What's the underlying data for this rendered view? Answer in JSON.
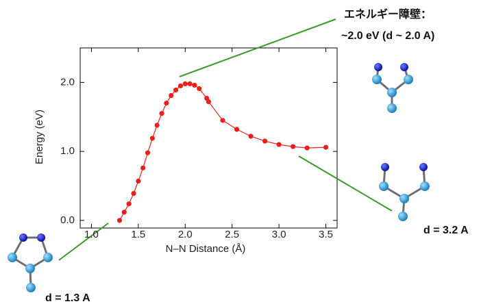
{
  "chart_data": {
    "type": "line",
    "xlabel": "N–N Distance (Å)",
    "ylabel": "Energy (eV)",
    "x": [
      1.3,
      1.35,
      1.4,
      1.45,
      1.5,
      1.55,
      1.6,
      1.65,
      1.7,
      1.75,
      1.8,
      1.85,
      1.9,
      1.95,
      2.0,
      2.05,
      2.1,
      2.15,
      2.23,
      2.25,
      2.4,
      2.55,
      2.7,
      2.85,
      3.0,
      3.15,
      3.3,
      3.5
    ],
    "series": [
      {
        "color": "#e8211b",
        "values": [
          0.0,
          0.12,
          0.24,
          0.39,
          0.57,
          0.76,
          0.98,
          1.19,
          1.38,
          1.55,
          1.7,
          1.81,
          1.89,
          1.95,
          1.98,
          1.98,
          1.96,
          1.91,
          1.77,
          1.72,
          1.45,
          1.32,
          1.22,
          1.15,
          1.1,
          1.07,
          1.05,
          1.06
        ]
      }
    ],
    "xlim": [
      0.88,
      3.62
    ],
    "ylim": [
      -0.11,
      2.5
    ],
    "xticks": [
      {
        "value": 1,
        "label": "1.0"
      },
      {
        "value": 1.5,
        "label": "1.5"
      },
      {
        "value": 2,
        "label": "2.0"
      },
      {
        "value": 2.5,
        "label": "2.5"
      },
      {
        "value": 3,
        "label": "3.0"
      },
      {
        "value": 3.5,
        "label": "3.5"
      }
    ],
    "yticks": [
      {
        "value": 0,
        "label": "0.0"
      },
      {
        "value": 1,
        "label": "1.0"
      },
      {
        "value": 2,
        "label": "2.0"
      }
    ],
    "annotations": [
      "エネルギー障壁：",
      "~2.0 eV  (d ~ 2.0 A)",
      "d = 3.2 A",
      "d = 1.3 A"
    ]
  }
}
